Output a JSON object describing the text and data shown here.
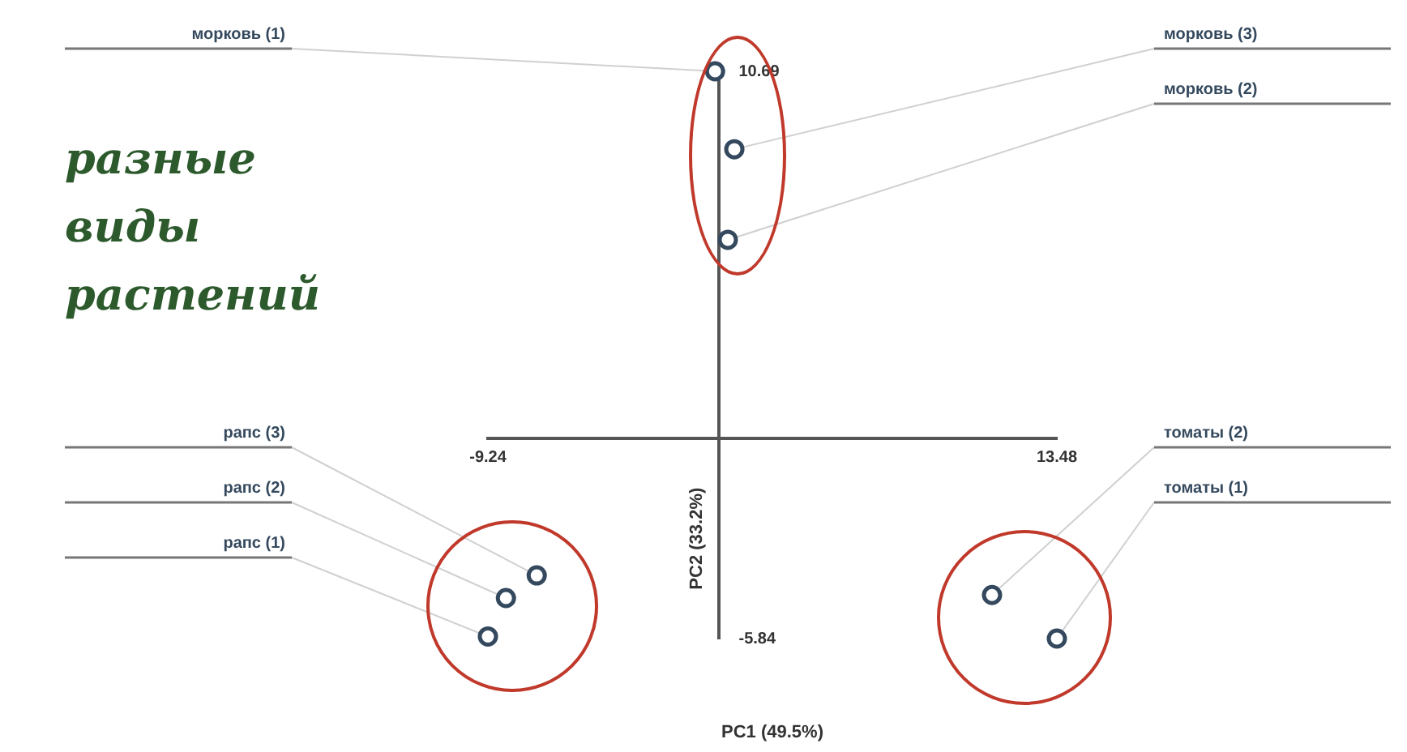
{
  "chart_data": {
    "type": "scatter",
    "xlabel": "PC1 (49.5%)",
    "ylabel": "PC2 (33.2%)",
    "xlim": [
      -9.24,
      13.48
    ],
    "ylim": [
      -5.84,
      10.69
    ],
    "xticks": [
      -9.24,
      13.48
    ],
    "yticks": [
      -5.84,
      10.69
    ],
    "grid": false,
    "legend": false,
    "marker": "circle",
    "annotations": [
      "разные виды растений"
    ],
    "series": [
      {
        "name": "морковь (1)",
        "color": "#34495e",
        "x": [
          -0.17
        ],
        "values": [
          10.69
        ]
      },
      {
        "name": "морковь (3)",
        "color": "#34495e",
        "x": [
          0.6
        ],
        "values": [
          8.42
        ]
      },
      {
        "name": "морковь (2)",
        "color": "#34495e",
        "x": [
          0.34
        ],
        "values": [
          5.78
        ]
      },
      {
        "name": "рапс (3)",
        "color": "#34495e",
        "x": [
          -7.29
        ],
        "values": [
          -4.0
        ]
      },
      {
        "name": "рапс (2)",
        "color": "#34495e",
        "x": [
          -8.52
        ],
        "values": [
          -4.66
        ]
      },
      {
        "name": "рапс (1)",
        "color": "#34495e",
        "x": [
          -9.24
        ],
        "values": [
          -5.78
        ]
      },
      {
        "name": "томаты (2)",
        "color": "#34495e",
        "x": [
          10.89
        ],
        "values": [
          -4.57
        ]
      },
      {
        "name": "томаты (1)",
        "color": "#34495e",
        "x": [
          13.48
        ],
        "values": [
          -5.84
        ]
      }
    ]
  }
}
